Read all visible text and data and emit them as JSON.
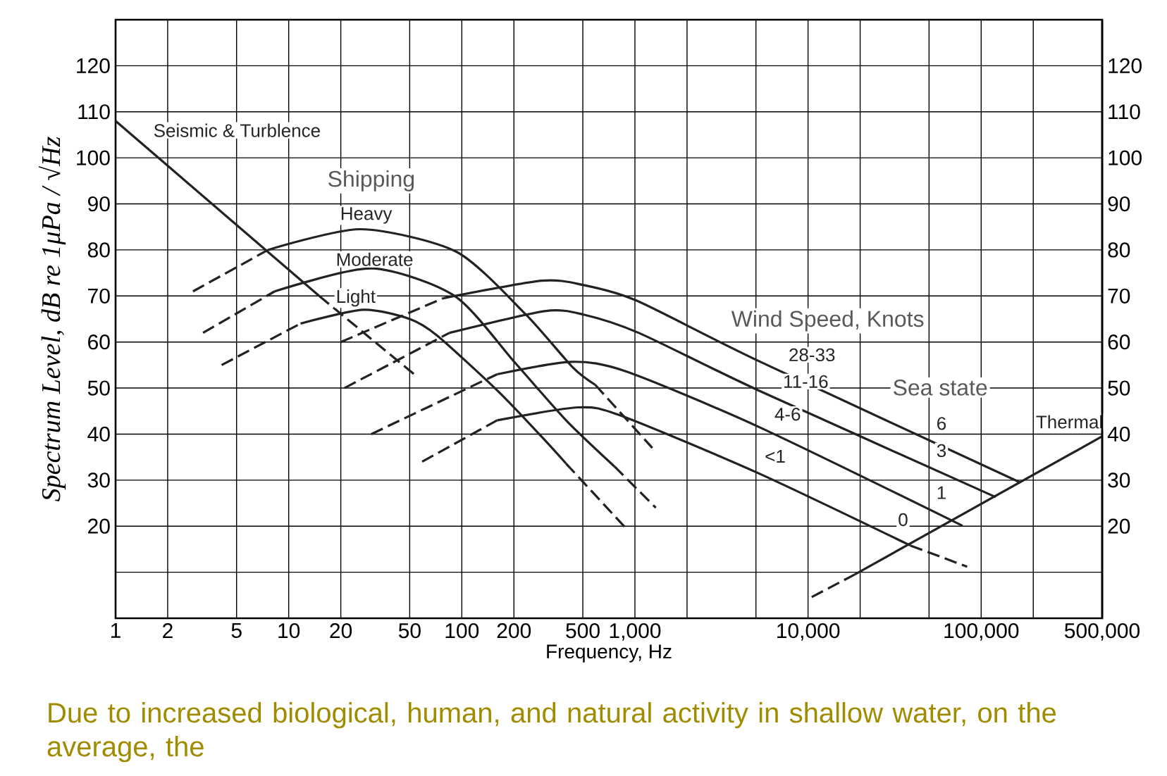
{
  "chart_data": {
    "type": "line",
    "xlabel": "Frequency, Hz",
    "ylabel": "Spectrum Level, dB re 1μPa / √Hz",
    "log": "x",
    "grid": true,
    "marker": "none",
    "xlim": [
      1,
      500000
    ],
    "ylim": [
      0,
      130
    ],
    "y2lim": [
      0,
      130
    ],
    "xticks": [
      1,
      2,
      5,
      10,
      20,
      50,
      100,
      200,
      500,
      {
        "value": 1000,
        "label": "1,000"
      },
      {
        "value": 2000,
        "label": null
      },
      {
        "value": 5000,
        "label": null
      },
      {
        "value": 10000,
        "label": "10,000"
      },
      {
        "value": 20000,
        "label": null
      },
      {
        "value": 50000,
        "label": null
      },
      {
        "value": 100000,
        "label": "100,000"
      },
      {
        "value": 200000,
        "label": null
      },
      {
        "value": 500000,
        "label": "500,000"
      }
    ],
    "yticks": [
      {
        "value": 10,
        "label": null
      },
      20,
      30,
      40,
      50,
      60,
      70,
      80,
      90,
      100,
      110,
      120
    ],
    "y2ticks": [
      20,
      30,
      40,
      50,
      60,
      70,
      80,
      90,
      100,
      110,
      120
    ],
    "series": [
      {
        "color": "#222222",
        "line_style": "solid",
        "x": [
          1,
          15
        ],
        "values": [
          108,
          70
        ]
      },
      {
        "color": "#222222",
        "line_style": "dashed",
        "x": [
          15,
          53
        ],
        "values": [
          70,
          53
        ]
      },
      {
        "color": "#222222",
        "line_style": "dashed",
        "x": [
          2.8,
          7.6
        ],
        "values": [
          71,
          80
        ]
      },
      {
        "color": "#222222",
        "line_style": "solid",
        "x": [
          7.6,
          26,
          93,
          234,
          437,
          590
        ],
        "values": [
          80,
          84.5,
          79.6,
          66,
          54.5,
          50.7
        ]
      },
      {
        "color": "#222222",
        "line_style": "dashed",
        "x": [
          590,
          1260
        ],
        "values": [
          50.7,
          37
        ]
      },
      {
        "color": "#222222",
        "line_style": "dashed",
        "x": [
          3.2,
          8.3
        ],
        "values": [
          62,
          71
        ]
      },
      {
        "color": "#222222",
        "line_style": "solid",
        "x": [
          8.3,
          30,
          91,
          204,
          400,
          760
        ],
        "values": [
          71,
          76,
          70,
          55.4,
          43,
          33
        ]
      },
      {
        "color": "#222222",
        "line_style": "dashed",
        "x": [
          760,
          1320
        ],
        "values": [
          33,
          24
        ]
      },
      {
        "color": "#222222",
        "line_style": "dashed",
        "x": [
          4.1,
          11.7
        ],
        "values": [
          55,
          64
        ]
      },
      {
        "color": "#222222",
        "line_style": "solid",
        "x": [
          11.7,
          27,
          50,
          72,
          162,
          288,
          400
        ],
        "values": [
          64,
          67,
          65,
          61.4,
          49.3,
          39.5,
          33.6
        ]
      },
      {
        "color": "#222222",
        "line_style": "dashed",
        "x": [
          400,
          890
        ],
        "values": [
          33.6,
          19.5
        ]
      },
      {
        "color": "#222222",
        "line_style": "dashed",
        "x": [
          20,
          78
        ],
        "values": [
          60,
          69.5
        ]
      },
      {
        "color": "#222222",
        "line_style": "solid",
        "x": [
          78,
          288,
          500,
          1020,
          5100,
          166000
        ],
        "values": [
          69.5,
          73.3,
          72.4,
          69,
          56,
          29.6
        ]
      },
      {
        "color": "#222222",
        "line_style": "dashed",
        "x": [
          21,
          85
        ],
        "values": [
          50,
          62
        ]
      },
      {
        "color": "#222222",
        "line_style": "solid",
        "x": [
          85,
          300,
          500,
          1050,
          5100,
          120000
        ],
        "values": [
          62,
          66.7,
          66,
          62,
          49.6,
          26.4
        ]
      },
      {
        "color": "#222222",
        "line_style": "dashed",
        "x": [
          30,
          160
        ],
        "values": [
          40,
          53
        ]
      },
      {
        "color": "#222222",
        "line_style": "solid",
        "x": [
          160,
          430,
          890,
          5100,
          68000
        ],
        "values": [
          53,
          55.7,
          53.6,
          41.7,
          21.2
        ]
      },
      {
        "color": "#222222",
        "line_style": "dashed",
        "x": [
          68000,
          78000
        ],
        "values": [
          21.2,
          20.1
        ]
      },
      {
        "color": "#222222",
        "line_style": "dashed",
        "x": [
          59,
          160
        ],
        "values": [
          34,
          43
        ]
      },
      {
        "color": "#222222",
        "line_style": "solid",
        "x": [
          160,
          470,
          830,
          5100,
          39000
        ],
        "values": [
          43,
          45.8,
          44,
          31.6,
          15.8
        ]
      },
      {
        "color": "#222222",
        "line_style": "dashed",
        "x": [
          39000,
          83000
        ],
        "values": [
          15.8,
          11.2
        ]
      },
      {
        "color": "#222222",
        "line_style": "solid",
        "x": [
          18600,
          500000
        ],
        "values": [
          9.5,
          39.5
        ]
      },
      {
        "color": "#222222",
        "line_style": "dashed",
        "x": [
          10500,
          18600
        ],
        "values": [
          4.6,
          9.5
        ]
      }
    ],
    "annotations": [
      {
        "text": "Seismic & Turblence",
        "x": 1.5,
        "y": 102.3
      },
      "Shipping",
      {
        "text": "Heavy",
        "x": 18,
        "y": 83.5
      },
      {
        "text": "Moderate",
        "x": 17,
        "y": 74.3
      },
      {
        "text": "Light",
        "x": 17,
        "y": 65.5
      },
      "Wind Speed, Knots",
      {
        "text": "28-33",
        "x": 7000,
        "y": 53.6
      },
      {
        "text": "11-16",
        "x": 6500,
        "y": 47.8
      },
      {
        "text": "4-6",
        "x": 5800,
        "y": 40.7
      },
      {
        "text": "<1",
        "x": 5100,
        "y": 31.6
      },
      "Sea state",
      {
        "text": "6",
        "x": 50000,
        "y": 38.7
      },
      {
        "text": "3",
        "x": 50000,
        "y": 32.8
      },
      {
        "text": "1",
        "x": 50000,
        "y": 23.7
      },
      {
        "text": "0",
        "x": 30000,
        "y": 17.8
      },
      {
        "text": "Thermal",
        "x": 480000,
        "y": 39
      },
      "Due to increased biological, human, and natural activity in shallow water, on the average, the"
    ]
  }
}
